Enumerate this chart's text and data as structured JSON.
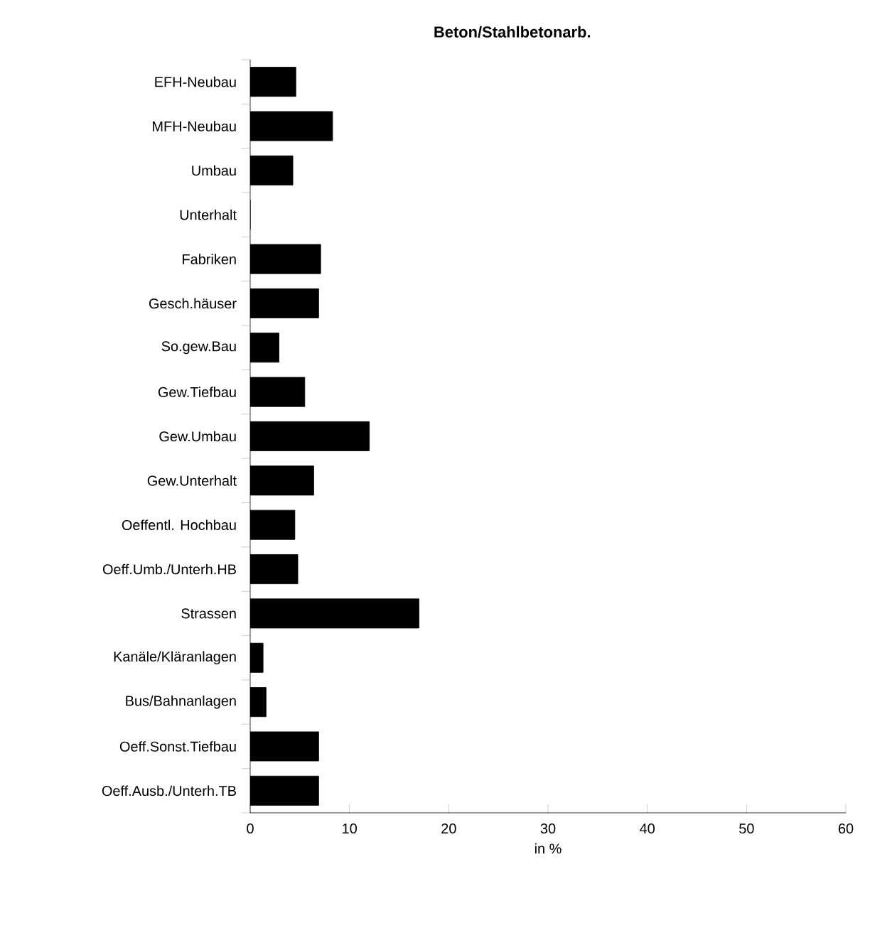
{
  "chart_data": {
    "type": "bar",
    "orientation": "horizontal",
    "title": "Beton/Stahlbetonarb.",
    "xlabel": "in %",
    "categories": [
      "EFH-Neubau",
      "MFH-Neubau",
      "Umbau",
      "Unterhalt",
      "Fabriken",
      "Gesch.häuser",
      "So.gew.Bau",
      "Gew.Tiefbau",
      "Gew.Umbau",
      "Gew.Unterhalt",
      "Oeffentl. Hochbau",
      "Oeff.Umb./Unterh.HB",
      "Strassen",
      "Kanäle/Kläranlagen",
      "Bus/Bahnanlagen",
      "Oeff.Sonst.Tiefbau",
      "Oeff.Ausb./Unterh.TB"
    ],
    "values": [
      4.6,
      8.3,
      4.3,
      0,
      7.1,
      6.9,
      2.9,
      5.5,
      12.0,
      6.4,
      4.5,
      4.8,
      17.0,
      1.3,
      1.6,
      6.9,
      6.9
    ],
    "color": "#000000",
    "xlim": [
      0,
      60
    ],
    "xticks": [
      0,
      10,
      20,
      30,
      40,
      50,
      60
    ]
  }
}
